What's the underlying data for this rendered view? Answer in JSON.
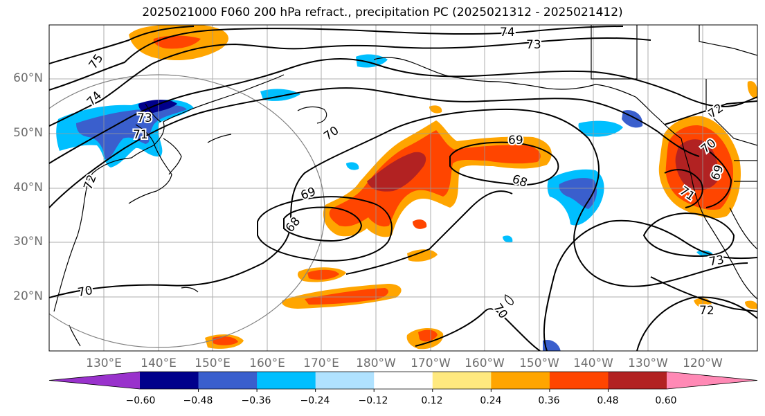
{
  "title": "2025021000 F060 200 hPa refract., precipitation PC (2025021312 - 2025021412)",
  "lat_labels": [
    "60°N",
    "50°N",
    "40°N",
    "30°N",
    "20°N"
  ],
  "lon_labels": [
    "130°E",
    "140°E",
    "150°E",
    "160°E",
    "170°E",
    "180°W",
    "170°W",
    "160°W",
    "150°W",
    "140°W",
    "130°W",
    "120°W"
  ],
  "contour_labels": [
    "75",
    "74",
    "73",
    "72",
    "71",
    "70",
    "69",
    "68",
    "69",
    "68",
    "70",
    "70",
    "69",
    "71",
    "70",
    "72",
    "73",
    "72",
    "74",
    "73"
  ],
  "colorbar": {
    "ticks": [
      "−0.60",
      "−0.48",
      "−0.36",
      "−0.24",
      "−0.12",
      "0.12",
      "0.24",
      "0.36",
      "0.48",
      "0.60"
    ],
    "colors": [
      "#9932cc",
      "#00008b",
      "#3a5fcd",
      "#00bfff",
      "#b0e2ff",
      "#ffffff",
      "#ffe97f",
      "#ffa500",
      "#ff4500",
      "#b22222",
      "#ff89b5"
    ]
  },
  "colors": {
    "grid": "#999999",
    "coast": "#000000",
    "contour": "#000000",
    "ring": "#808080"
  }
}
